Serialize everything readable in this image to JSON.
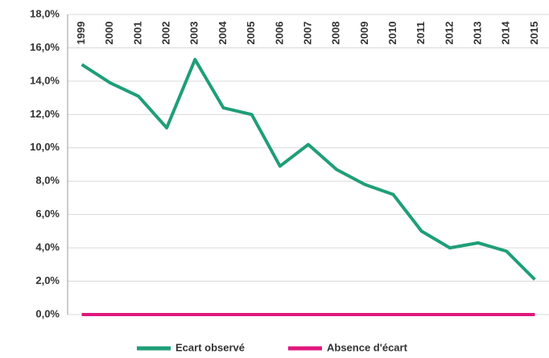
{
  "chart_data": {
    "type": "line",
    "categories": [
      "1999",
      "2000",
      "2001",
      "2002",
      "2003",
      "2004",
      "2005",
      "2006",
      "2007",
      "2008",
      "2009",
      "2010",
      "2011",
      "2012",
      "2013",
      "2014",
      "2015"
    ],
    "series": [
      {
        "name": "Ecart observé",
        "color": "#1f9e78",
        "values": [
          15.0,
          13.9,
          13.1,
          11.2,
          15.3,
          12.4,
          12.0,
          8.9,
          10.2,
          8.7,
          7.8,
          7.2,
          5.0,
          4.0,
          4.3,
          3.8,
          2.1
        ]
      },
      {
        "name": "Absence d'écart",
        "color": "#e0177d",
        "values": [
          0,
          0,
          0,
          0,
          0,
          0,
          0,
          0,
          0,
          0,
          0,
          0,
          0,
          0,
          0,
          0,
          0
        ]
      }
    ],
    "ylim": [
      0,
      18
    ],
    "yticks": [
      {
        "value": 0,
        "label": "0,0%"
      },
      {
        "value": 2,
        "label": "2,0%"
      },
      {
        "value": 4,
        "label": "4,0%"
      },
      {
        "value": 6,
        "label": "6,0%"
      },
      {
        "value": 8,
        "label": "8,0%"
      },
      {
        "value": 10,
        "label": "10,0%"
      },
      {
        "value": 12,
        "label": "12,0%"
      },
      {
        "value": 14,
        "label": "14,0%"
      },
      {
        "value": 16,
        "label": "16,0%"
      },
      {
        "value": 18,
        "label": "18,0%"
      }
    ],
    "grid": true,
    "legend": "bottom"
  }
}
